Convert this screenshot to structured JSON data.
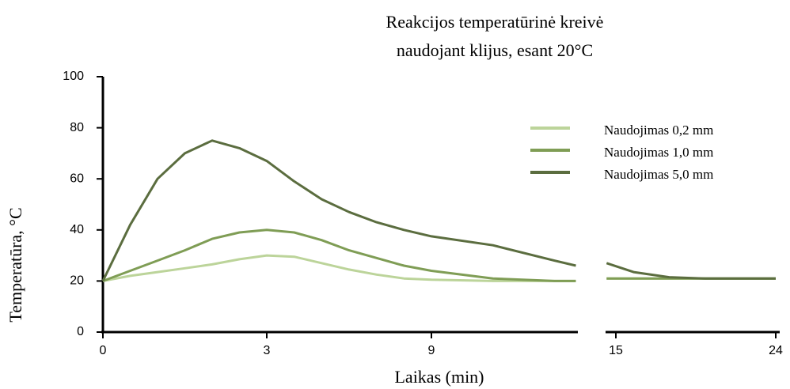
{
  "chart_data": {
    "type": "line",
    "title": [
      "Reakcijos temperatūrinė kreivė",
      "naudojant klijus, esant 20°C"
    ],
    "x_label": "Laikas (min)",
    "y_label": "Temperatūra, °C",
    "x": [
      0,
      0.5,
      1,
      1.5,
      2,
      2.5,
      3,
      4,
      5,
      6,
      7,
      8,
      9,
      11,
      13,
      13.7,
      14,
      14.7,
      16,
      18,
      20,
      22,
      24
    ],
    "series": [
      {
        "name": "Naudojimas 0,2 mm",
        "color": "#bcd49a",
        "values": [
          20,
          22,
          23.5,
          25,
          26.5,
          28.5,
          30,
          29.5,
          27,
          24.5,
          22.5,
          21,
          20.5,
          20,
          20,
          20,
          null,
          21,
          21,
          21,
          21,
          21,
          21
        ]
      },
      {
        "name": "Naudojimas 1,0 mm",
        "color": "#7f9d55",
        "values": [
          20,
          24,
          28,
          32,
          36.5,
          39,
          40,
          39,
          36,
          32,
          29,
          26,
          24,
          21,
          20,
          20,
          null,
          21,
          21,
          21,
          21,
          21,
          21
        ]
      },
      {
        "name": "Naudojimas 5,0 mm",
        "color": "#5b6d3f",
        "values": [
          20,
          42,
          60,
          70,
          75,
          72,
          67,
          59,
          52,
          47,
          43,
          40,
          37.5,
          34,
          28,
          26,
          null,
          27,
          23.5,
          21.5,
          21,
          21,
          21
        ]
      }
    ],
    "xticks": [
      0,
      3,
      9,
      15,
      24
    ],
    "ylim": [
      0,
      100
    ],
    "yticks": [
      0,
      20,
      40,
      60,
      80,
      100
    ],
    "legend": "upper right",
    "grid": false
  }
}
